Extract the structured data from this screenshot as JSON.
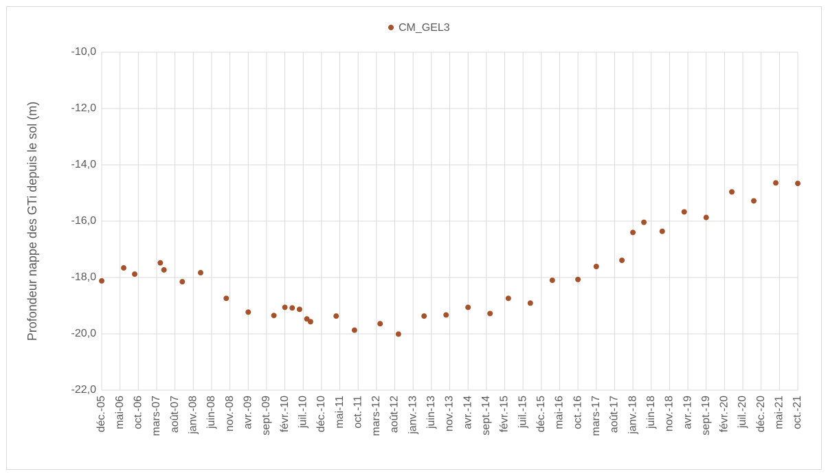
{
  "chart_data": {
    "type": "scatter",
    "y_label": "Profondeur nappe des GTi depuis le sol (m)",
    "series": [
      {
        "name": "CM_GEL3",
        "color": "#a5522a",
        "x": [
          "2005-12",
          "2006-06",
          "2006-09",
          "2007-04",
          "2007-05",
          "2007-10",
          "2008-03",
          "2008-10",
          "2009-04",
          "2009-11",
          "2010-02",
          "2010-04",
          "2010-06",
          "2010-08",
          "2010-09",
          "2011-04",
          "2011-09",
          "2012-04",
          "2012-09",
          "2013-04",
          "2013-10",
          "2014-04",
          "2014-10",
          "2015-03",
          "2015-09",
          "2016-03",
          "2016-10",
          "2017-03",
          "2017-10",
          "2018-01",
          "2018-04",
          "2018-09",
          "2019-03",
          "2019-09",
          "2020-04",
          "2020-10",
          "2021-04",
          "2021-10"
        ],
        "values": [
          -18.12,
          -17.66,
          -17.88,
          -17.48,
          -17.73,
          -18.15,
          -17.83,
          -18.74,
          -19.23,
          -19.35,
          -19.06,
          -19.08,
          -19.13,
          -19.47,
          -19.57,
          -19.37,
          -19.87,
          -19.64,
          -20.01,
          -19.37,
          -19.33,
          -19.06,
          -19.28,
          -18.74,
          -18.91,
          -18.1,
          -18.07,
          -17.61,
          -17.39,
          -16.4,
          -16.04,
          -16.36,
          -15.67,
          -15.87,
          -14.96,
          -15.28,
          -14.64,
          -14.66
        ]
      }
    ],
    "xlim": [
      "2005-12",
      "2021-10"
    ],
    "xticks": [
      {
        "value": "2005-12",
        "label": "déc.-05"
      },
      {
        "value": "2006-05",
        "label": "mai-06"
      },
      {
        "value": "2006-10",
        "label": "oct.-06"
      },
      {
        "value": "2007-03",
        "label": "mars-07"
      },
      {
        "value": "2007-08",
        "label": "août-07"
      },
      {
        "value": "2008-01",
        "label": "janv.-08"
      },
      {
        "value": "2008-06",
        "label": "juin-08"
      },
      {
        "value": "2008-11",
        "label": "nov.-08"
      },
      {
        "value": "2009-04",
        "label": "avr.-09"
      },
      {
        "value": "2009-09",
        "label": "sept.-09"
      },
      {
        "value": "2010-02",
        "label": "févr.-10"
      },
      {
        "value": "2010-07",
        "label": "juil.-10"
      },
      {
        "value": "2010-12",
        "label": "déc.-10"
      },
      {
        "value": "2011-05",
        "label": "mai-11"
      },
      {
        "value": "2011-10",
        "label": "oct.-11"
      },
      {
        "value": "2012-03",
        "label": "mars-12"
      },
      {
        "value": "2012-08",
        "label": "août-12"
      },
      {
        "value": "2013-01",
        "label": "janv.-13"
      },
      {
        "value": "2013-06",
        "label": "juin-13"
      },
      {
        "value": "2013-11",
        "label": "nov.-13"
      },
      {
        "value": "2014-04",
        "label": "avr.-14"
      },
      {
        "value": "2014-09",
        "label": "sept.-14"
      },
      {
        "value": "2015-02",
        "label": "févr.-15"
      },
      {
        "value": "2015-07",
        "label": "juil.-15"
      },
      {
        "value": "2015-12",
        "label": "déc.-15"
      },
      {
        "value": "2016-05",
        "label": "mai-16"
      },
      {
        "value": "2016-10",
        "label": "oct.-16"
      },
      {
        "value": "2017-03",
        "label": "mars-17"
      },
      {
        "value": "2017-08",
        "label": "août-17"
      },
      {
        "value": "2018-01",
        "label": "janv.-18"
      },
      {
        "value": "2018-06",
        "label": "juin-18"
      },
      {
        "value": "2018-11",
        "label": "nov.-18"
      },
      {
        "value": "2019-04",
        "label": "avr.-19"
      },
      {
        "value": "2019-09",
        "label": "sept.-19"
      },
      {
        "value": "2020-02",
        "label": "févr.-20"
      },
      {
        "value": "2020-07",
        "label": "juil.-20"
      },
      {
        "value": "2020-12",
        "label": "déc.-20"
      },
      {
        "value": "2021-05",
        "label": "mai-21"
      },
      {
        "value": "2021-10",
        "label": "oct.-21"
      }
    ],
    "ylim": [
      -22,
      -10
    ],
    "yticks": [
      {
        "value": -10,
        "label": "-10,0"
      },
      {
        "value": -12,
        "label": "-12,0"
      },
      {
        "value": -14,
        "label": "-14,0"
      },
      {
        "value": -16,
        "label": "-16,0"
      },
      {
        "value": -18,
        "label": "-18,0"
      },
      {
        "value": -20,
        "label": "-20,0"
      },
      {
        "value": -22,
        "label": "-22,0"
      }
    ],
    "grid": true,
    "legend": "top"
  }
}
